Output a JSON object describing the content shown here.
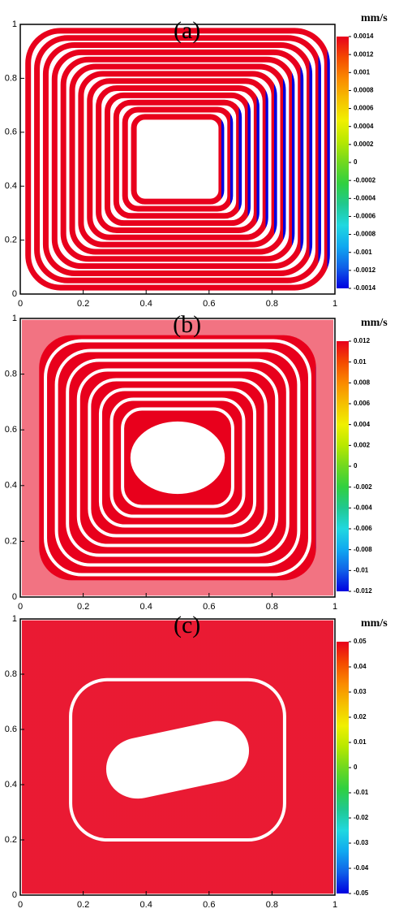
{
  "chart_data": [
    {
      "type": "contour",
      "title": "(a)",
      "colorbar_label": "mm/s",
      "xlim": [
        0,
        1
      ],
      "ylim": [
        0,
        1
      ],
      "xticks": [
        0,
        0.2,
        0.4,
        0.6,
        0.8,
        1
      ],
      "yticks": [
        0,
        0.2,
        0.4,
        0.6,
        0.8,
        1
      ],
      "clim": [
        -0.0014,
        0.0014
      ],
      "cticks": [
        0.0014,
        0.0012,
        0.001,
        0.0008,
        0.0006,
        0.0004,
        0.0002,
        0,
        -0.0002,
        -0.0004,
        -0.0006,
        -0.0008,
        -0.001,
        -0.0012,
        -0.0014
      ],
      "colormap": [
        "#e8001c",
        "#f44a00",
        "#fa8a00",
        "#f5c000",
        "#f0f000",
        "#b8e800",
        "#70d820",
        "#30d040",
        "#20c890",
        "#20d8e0",
        "#10a8f0",
        "#1060e8",
        "#0000e0"
      ]
    },
    {
      "type": "contour",
      "title": "(b)",
      "colorbar_label": "mm/s",
      "xlim": [
        0,
        1
      ],
      "ylim": [
        0,
        1
      ],
      "xticks": [
        0,
        0.2,
        0.4,
        0.6,
        0.8,
        1
      ],
      "yticks": [
        0,
        0.2,
        0.4,
        0.6,
        0.8,
        1
      ],
      "clim": [
        -0.012,
        0.012
      ],
      "cticks": [
        0.012,
        0.01,
        0.008,
        0.006,
        0.004,
        0.002,
        0,
        -0.002,
        -0.004,
        -0.006,
        -0.008,
        -0.01,
        -0.012
      ],
      "colormap": [
        "#e8001c",
        "#f44a00",
        "#fa8a00",
        "#f5c000",
        "#f0f000",
        "#b8e800",
        "#70d820",
        "#30d040",
        "#20c890",
        "#20d8e0",
        "#10a8f0",
        "#1060e8",
        "#0000e0"
      ]
    },
    {
      "type": "contour",
      "title": "(c)",
      "colorbar_label": "mm/s",
      "xlim": [
        0,
        1
      ],
      "ylim": [
        0,
        1
      ],
      "xticks": [
        0,
        0.2,
        0.4,
        0.6,
        0.8,
        1
      ],
      "yticks": [
        0,
        0.2,
        0.4,
        0.6,
        0.8,
        1
      ],
      "clim": [
        -0.05,
        0.05
      ],
      "cticks": [
        0.05,
        0.04,
        0.03,
        0.02,
        0.01,
        0,
        -0.01,
        -0.02,
        -0.03,
        -0.04,
        -0.05
      ],
      "colormap": [
        "#e8001c",
        "#f44a00",
        "#fa8a00",
        "#f5c000",
        "#f0f000",
        "#b8e800",
        "#70d820",
        "#30d040",
        "#20c890",
        "#20d8e0",
        "#10a8f0",
        "#1060e8",
        "#0000e0"
      ]
    }
  ]
}
